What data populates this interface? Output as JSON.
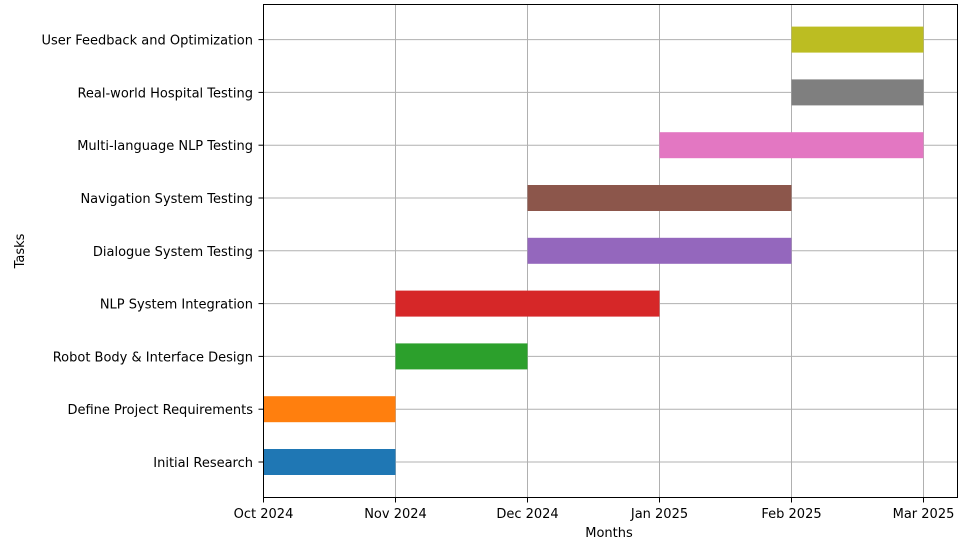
{
  "chart_data": {
    "type": "bar",
    "orientation": "horizontal",
    "subtype": "gantt",
    "title": "",
    "xlabel": "Months",
    "ylabel": "Tasks",
    "grid": true,
    "x_ticks": [
      "Oct 2024",
      "Nov 2024",
      "Dec 2024",
      "Jan 2025",
      "Feb 2025",
      "Mar 2025"
    ],
    "tasks": [
      {
        "name": "Initial Research",
        "start": "Oct 2024",
        "end": "Nov 2024",
        "color": "#1f77b4"
      },
      {
        "name": "Define Project Requirements",
        "start": "Oct 2024",
        "end": "Nov 2024",
        "color": "#ff7f0e"
      },
      {
        "name": "Robot Body & Interface Design",
        "start": "Nov 2024",
        "end": "Dec 2024",
        "color": "#2ca02c"
      },
      {
        "name": "NLP System Integration",
        "start": "Nov 2024",
        "end": "Jan 2025",
        "color": "#d62728"
      },
      {
        "name": "Dialogue System Testing",
        "start": "Dec 2024",
        "end": "Feb 2025",
        "color": "#9467bd"
      },
      {
        "name": "Navigation System Testing",
        "start": "Dec 2024",
        "end": "Feb 2025",
        "color": "#8c564b"
      },
      {
        "name": "Multi-language NLP Testing",
        "start": "Jan 2025",
        "end": "Mar 2025",
        "color": "#e377c2"
      },
      {
        "name": "Real-world Hospital Testing",
        "start": "Feb 2025",
        "end": "Mar 2025",
        "color": "#7f7f7f"
      },
      {
        "name": "User Feedback and Optimization",
        "start": "Feb 2025",
        "end": "Mar 2025",
        "color": "#bcbd22"
      }
    ]
  }
}
